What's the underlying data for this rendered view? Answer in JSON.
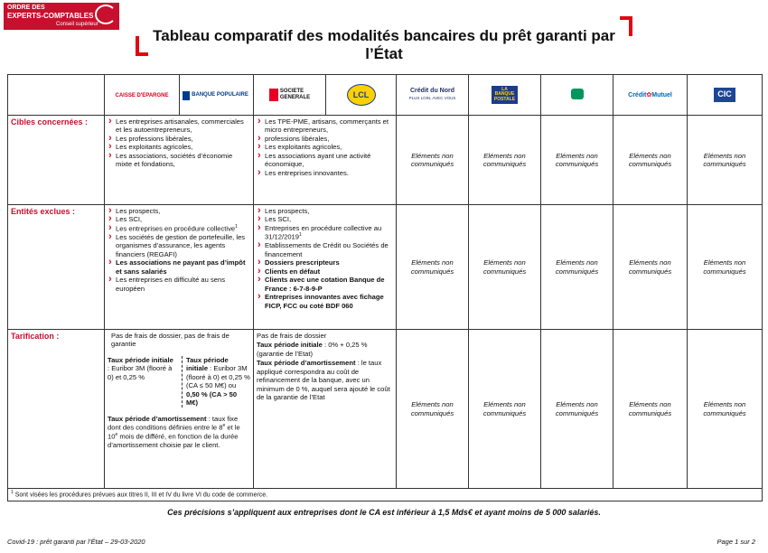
{
  "header": {
    "org": [
      "ORDRE DES",
      "EXPERTS-COMPTABLES",
      "Conseil supérieur"
    ],
    "title": "Tableau comparatif des modalités bancaires du prêt garanti par l’État"
  },
  "banks": {
    "caisse_epargne": "CAISSE D'EPARGNE",
    "banque_populaire": "BANQUE POPULAIRE",
    "societe_generale": [
      "SOCIETE",
      "GENERALE"
    ],
    "lcl": "LCL",
    "credit_du_nord": [
      "Crédit du Nord",
      "PLUS LOIN, AVEC VOUS"
    ],
    "banque_postale": [
      "LA",
      "BANQUE",
      "POSTALE"
    ],
    "credit_mutuel": "Crédit",
    "credit_mutuel_2": "Mutuel",
    "cic": "CIC"
  },
  "not_communicated": "Eléments non communiqués",
  "rows": [
    {
      "label": "Cibles concernées :",
      "group_a": [
        {
          "runs": [
            {
              "t": "Les entreprises artisanales, commerciales et les autoentrepreneurs,"
            }
          ]
        },
        {
          "runs": [
            {
              "t": "Les professions libérales,"
            }
          ]
        },
        {
          "runs": [
            {
              "t": "Les exploitants agricoles,"
            }
          ]
        },
        {
          "runs": [
            {
              "t": "Les associations, sociétés d’économie mixte et fondations,"
            }
          ]
        }
      ],
      "group_b": [
        {
          "runs": [
            {
              "t": "Les TPE-PME, artisans, commerçants et micro entrepreneurs,"
            }
          ]
        },
        {
          "runs": [
            {
              "t": "professions libérales,"
            }
          ]
        },
        {
          "runs": [
            {
              "t": "Les exploitants agricoles,"
            }
          ]
        },
        {
          "runs": [
            {
              "t": "Les associations ayant une activité économique,"
            }
          ]
        },
        {
          "runs": [
            {
              "t": "Les entreprises innovantes."
            }
          ]
        }
      ]
    },
    {
      "label": "Entités exclues :",
      "group_a": [
        {
          "runs": [
            {
              "t": "Les prospects,"
            }
          ]
        },
        {
          "runs": [
            {
              "t": "Les SCI,"
            }
          ]
        },
        {
          "runs": [
            {
              "t": "Les entreprises en procédure collective"
            },
            {
              "t": "1",
              "sup": true
            }
          ]
        },
        {
          "runs": [
            {
              "t": "Les sociétés de gestion de portefeuille, les organismes d’assurance, les agents financiers (REGAFI)"
            }
          ]
        },
        {
          "runs": [
            {
              "t": "Les associations ne payant pas d’impôt et sans salariés",
              "bold": true
            }
          ]
        },
        {
          "runs": [
            {
              "t": "Les entreprises en difficulté au sens européen"
            }
          ]
        }
      ],
      "group_b": [
        {
          "runs": [
            {
              "t": "Les prospects,"
            }
          ]
        },
        {
          "runs": [
            {
              "t": "Les SCI,"
            }
          ]
        },
        {
          "runs": [
            {
              "t": "Entreprises en procédure collective au 31/12/2019"
            },
            {
              "t": "1",
              "sup": true
            }
          ]
        },
        {
          "runs": [
            {
              "t": "Etablissements de Crédit ou Sociétés de financement"
            }
          ]
        },
        {
          "runs": [
            {
              "t": "Dossiers prescripteurs",
              "bold": true
            }
          ]
        },
        {
          "runs": [
            {
              "t": "Clients en défaut",
              "bold": true
            }
          ]
        },
        {
          "runs": [
            {
              "t": "Clients avec une cotation Banque de France : 6-7-8-9-P",
              "bold": true
            }
          ]
        },
        {
          "runs": [
            {
              "t": "Entreprises innovantes avec fichage FICP, FCC ou coté BDF 060",
              "bold": true
            }
          ]
        }
      ]
    },
    {
      "label": "Tarification :",
      "tarif_a": {
        "top": [
          {
            "t": "Pas de frais de dossier, pas de frais de garantie"
          }
        ],
        "left": [
          {
            "t": "Taux période initiale",
            "bold": true
          },
          {
            "t": " : Euribor 3M (flooré à 0) et 0,25 %"
          }
        ],
        "right": [
          {
            "t": "Taux période initiale",
            "bold": true
          },
          {
            "t": " : Euribor 3M (flooré à 0) et 0,25 % (CA ≤ 50 M€) ou "
          },
          {
            "t": "0,50 % (CA > 50 M€)",
            "bold": true
          }
        ],
        "bottom": [
          {
            "t": "Taux période d’amortissement",
            "bold": true
          },
          {
            "t": " : taux fixe dont des conditions définies entre le 8"
          },
          {
            "t": "e",
            "sup": true
          },
          {
            "t": " et le 10"
          },
          {
            "t": "e",
            "sup": true
          },
          {
            "t": " mois de différé, en fonction de la durée d’amortissement choisie par le client."
          }
        ]
      },
      "tarif_b": [
        [
          {
            "t": "Pas de frais de dossier"
          }
        ],
        [
          {
            "t": "Taux période initiale",
            "bold": true
          },
          {
            "t": " : 0% + 0,25 %(garantie de l’Etat)"
          }
        ],
        [
          {
            "t": "Taux période d’amortissement",
            "bold": true
          },
          {
            "t": " : le taux appliqué correspondra au coût de refinancement de la banque, avec un minimum de 0 %, auquel sera ajouté le coût de la garantie de l’Etat"
          }
        ]
      ]
    }
  ],
  "footnote": {
    "mark": "1",
    "text": " Sont visées les procédures prévues aux titres II, III et IV du livre VI du code de commerce."
  },
  "note": "Ces précisions s’appliquent aux entreprises dont le CA est inférieur à 1,5 Mds€ et ayant moins de 5 000 salariés.",
  "footer": {
    "left": "Covid-19 : prêt garanti par l’État – 29-03-2020",
    "right": "Page 1 sur 2"
  }
}
